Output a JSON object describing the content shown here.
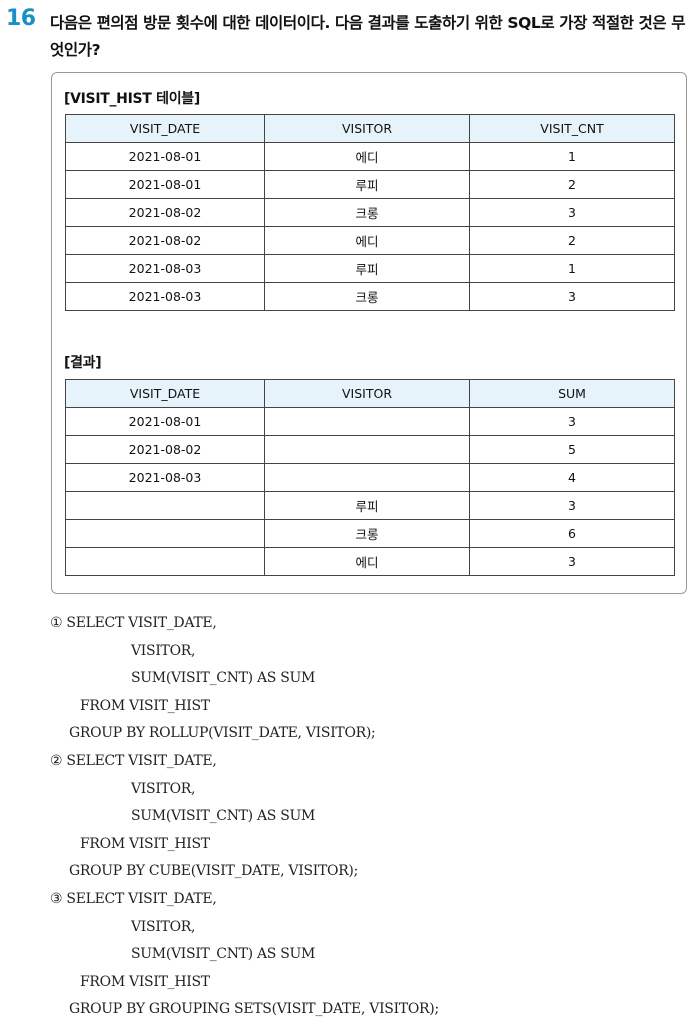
{
  "question": {
    "number": "16",
    "text": "다음은 편의점 방문 횟수에 대한 데이터이다. 다음 결과를 도출하기 위한 SQL로 가장 적절한 것은 무엇인가?"
  },
  "visit_hist": {
    "caption": "[VISIT_HIST 테이블]",
    "headers": [
      "VISIT_DATE",
      "VISITOR",
      "VISIT_CNT"
    ],
    "rows": [
      [
        "2021-08-01",
        "에디",
        "1"
      ],
      [
        "2021-08-01",
        "루피",
        "2"
      ],
      [
        "2021-08-02",
        "크롱",
        "3"
      ],
      [
        "2021-08-02",
        "에디",
        "2"
      ],
      [
        "2021-08-03",
        "루피",
        "1"
      ],
      [
        "2021-08-03",
        "크롱",
        "3"
      ]
    ]
  },
  "result": {
    "caption": "[결과]",
    "headers": [
      "VISIT_DATE",
      "VISITOR",
      "SUM"
    ],
    "rows": [
      [
        "2021-08-01",
        "",
        "3"
      ],
      [
        "2021-08-02",
        "",
        "5"
      ],
      [
        "2021-08-03",
        "",
        "4"
      ],
      [
        "",
        "루피",
        "3"
      ],
      [
        "",
        "크롱",
        "6"
      ],
      [
        "",
        "에디",
        "3"
      ]
    ]
  },
  "choices": [
    {
      "lines": [
        "① SELECT VISIT_DATE,",
        "VISITOR,",
        "SUM(VISIT_CNT) AS SUM",
        "FROM VISIT_HIST",
        "GROUP BY ROLLUP(VISIT_DATE, VISITOR);"
      ]
    },
    {
      "lines": [
        "② SELECT VISIT_DATE,",
        "VISITOR,",
        "SUM(VISIT_CNT) AS SUM",
        "FROM VISIT_HIST",
        "GROUP BY CUBE(VISIT_DATE, VISITOR);"
      ]
    },
    {
      "lines": [
        "③ SELECT VISIT_DATE,",
        "VISITOR,",
        "SUM(VISIT_CNT) AS SUM",
        "FROM VISIT_HIST",
        "GROUP BY GROUPING SETS(VISIT_DATE, VISITOR);"
      ]
    }
  ]
}
